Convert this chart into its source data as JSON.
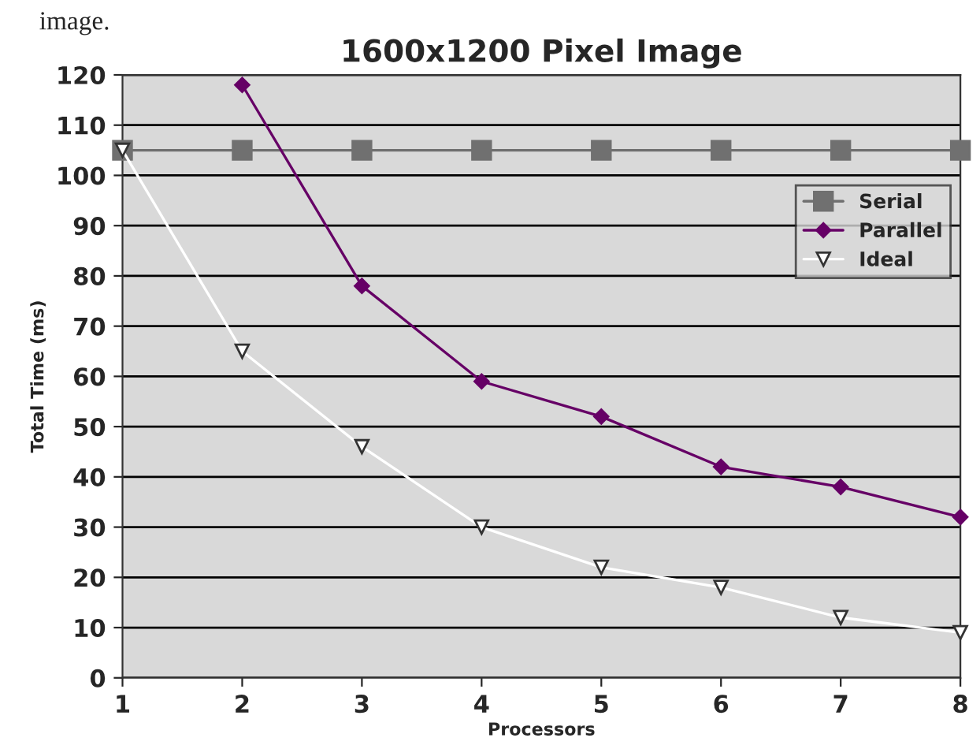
{
  "chart_data": {
    "type": "line",
    "title": "1600x1200 Pixel Image",
    "xlabel": "Processors",
    "ylabel": "Total Time (ms)",
    "annotations": [
      "image."
    ],
    "x": [
      1,
      2,
      3,
      4,
      5,
      6,
      7,
      8
    ],
    "series": [
      {
        "name": "Serial",
        "color": "#707070",
        "marker": "square",
        "values": [
          105,
          105,
          105,
          105,
          105,
          105,
          105,
          105
        ]
      },
      {
        "name": "Parallel",
        "color": "#660066",
        "marker": "diamond",
        "values": [
          null,
          118,
          78,
          59,
          52,
          42,
          38,
          32
        ]
      },
      {
        "name": "Ideal",
        "color": "#ffffff",
        "marker": "triangle",
        "values": [
          105,
          65,
          46,
          30,
          22,
          18,
          12,
          9
        ]
      }
    ],
    "xlim": [
      1,
      8
    ],
    "xticks": [
      1,
      2,
      3,
      4,
      5,
      6,
      7,
      8
    ],
    "ylim": [
      0,
      120
    ],
    "yticks": [
      0,
      10,
      20,
      30,
      40,
      50,
      60,
      70,
      80,
      90,
      100,
      110,
      120
    ],
    "grid": "y",
    "legend": "right",
    "line_style": "solid"
  }
}
